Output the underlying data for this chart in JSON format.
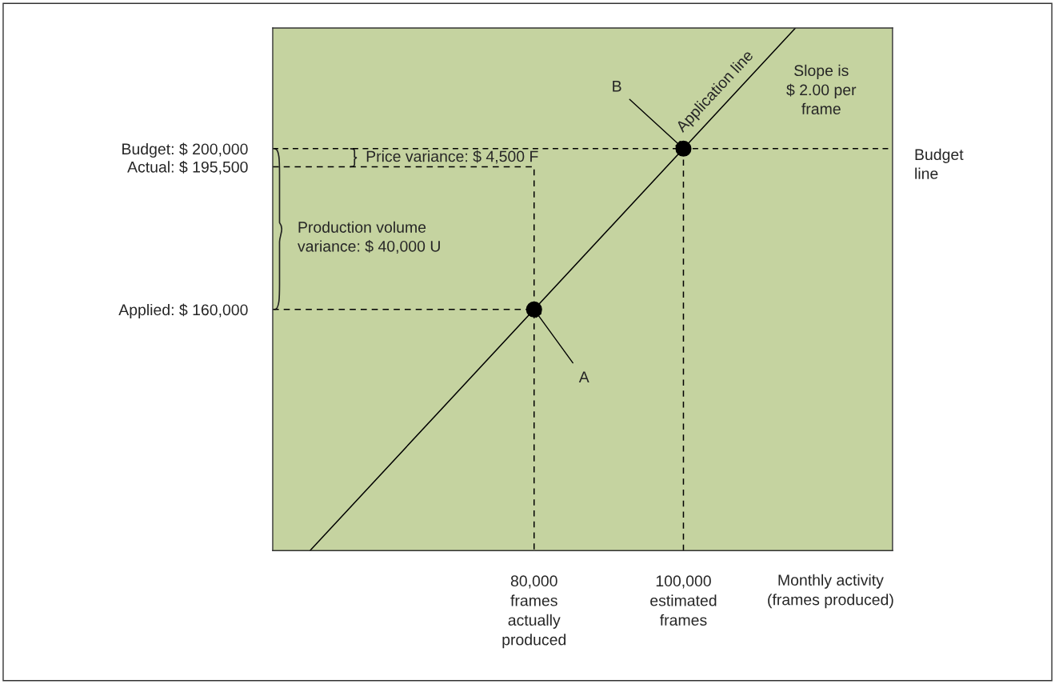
{
  "chart_data": {
    "type": "line",
    "xlabel": "Monthly activity\n(frames produced)",
    "xlim": [
      45000,
      128000
    ],
    "ylim": [
      100000,
      230000
    ],
    "xticks": [
      {
        "value": 80000,
        "label": "80,000\nframes\nactually\nproduced"
      },
      {
        "value": 100000,
        "label": "100,000\nestimated\nframes"
      }
    ],
    "yticks": [
      {
        "value": 160000,
        "label": "Applied: $ 160,000"
      },
      {
        "value": 195500,
        "label": "Actual: $ 195,500"
      },
      {
        "value": 200000,
        "label": "Budget: $ 200,000"
      }
    ],
    "series": [
      {
        "color": "#000000",
        "x": [
          50000,
          115000
        ],
        "values": [
          100000,
          230000
        ],
        "line_style": "solid",
        "marker": "none"
      },
      {
        "color": "#000000",
        "x": [
          45000,
          80000
        ],
        "values": [
          160000,
          160000
        ],
        "line_style": "dashed",
        "marker": "none"
      },
      {
        "color": "#000000",
        "x": [
          45000,
          80000,
          80000
        ],
        "values": [
          195500,
          195500,
          100000
        ],
        "line_style": "dashed",
        "marker": "none"
      },
      {
        "color": "#000000",
        "x": [
          100000,
          100000
        ],
        "values": [
          100000,
          200000
        ],
        "line_style": "dashed",
        "marker": "none"
      },
      {
        "type": "scatter",
        "color": "#000000",
        "x": [
          80000,
          100000
        ],
        "values": [
          160000,
          200000
        ],
        "marker": "circle"
      }
    ],
    "ref_lines": [
      {
        "axis": "y",
        "value": 200000,
        "label": "Budget\nline",
        "line_style": "dashed",
        "color": "#000000"
      }
    ],
    "annotations": [
      {
        "text": "A",
        "x": 80000,
        "y": 160000
      },
      {
        "text": "B",
        "x": 100000,
        "y": 200000
      },
      "Application line",
      "Slope is\n$ 2.00 per\nframe",
      "Price variance: $ 4,500 F",
      "Production volume\nvariance: $ 40,000 U"
    ],
    "grid": false,
    "legend": false
  }
}
